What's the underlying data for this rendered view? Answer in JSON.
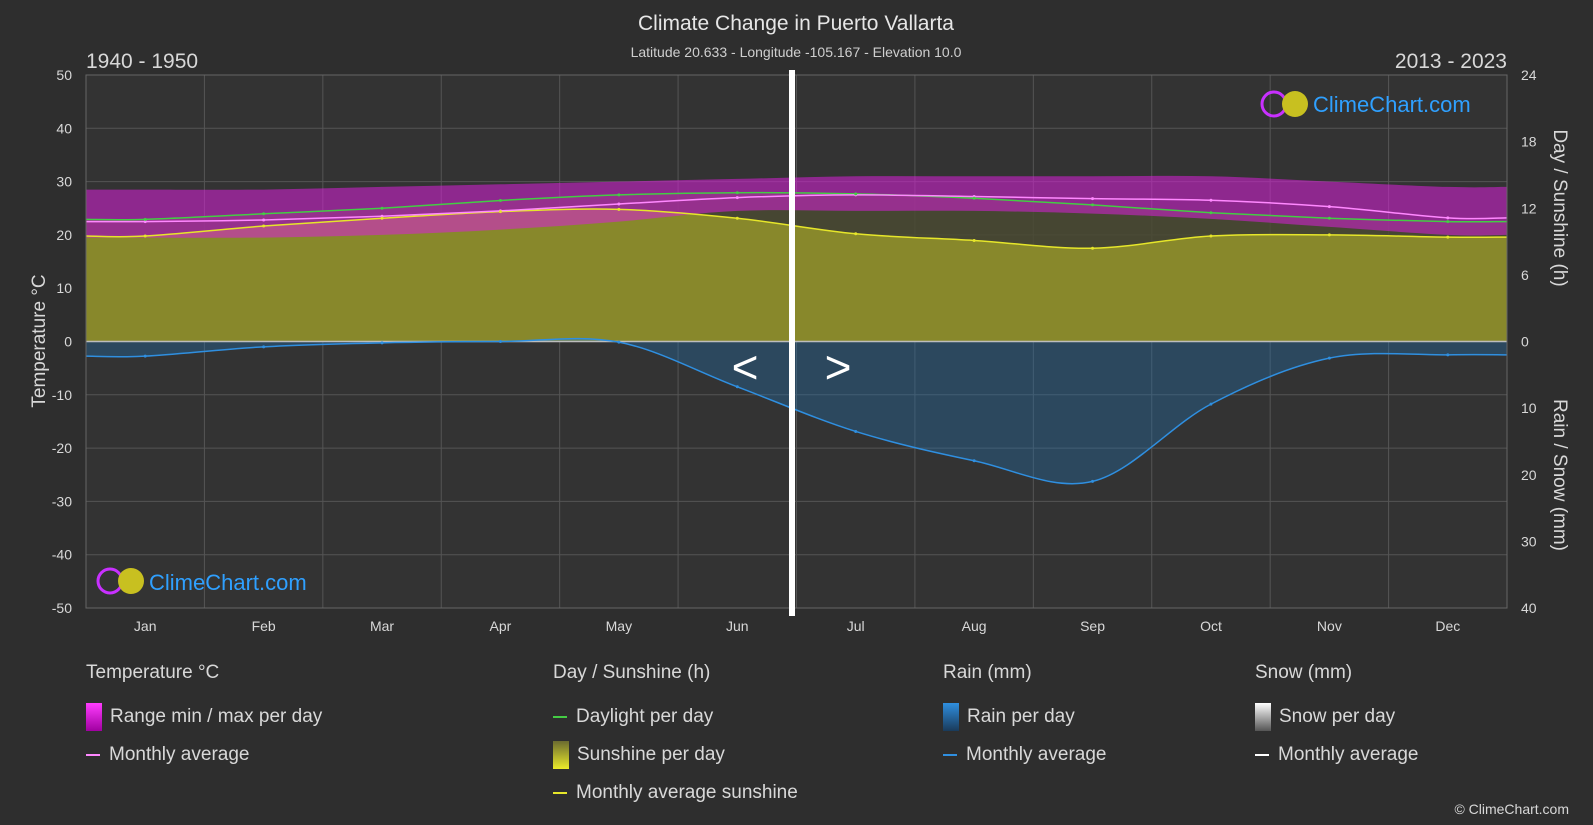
{
  "header": {
    "title": "Climate Change in Puerto Vallarta",
    "subtitle": "Latitude 20.633 - Longitude -105.167 - Elevation 10.0",
    "period_left": "1940 - 1950",
    "period_right": "2013 - 2023",
    "nav_prev": "<",
    "nav_next": ">"
  },
  "watermark": {
    "text": "ClimeChart.com"
  },
  "copyright": "© ClimeChart.com",
  "legend": {
    "temperature": {
      "title": "Temperature °C",
      "range_label": "Range min / max per day",
      "avg_label": "Monthly average"
    },
    "sunshine": {
      "title": "Day / Sunshine (h)",
      "daylight_label": "Daylight per day",
      "sunshine_label": "Sunshine per day",
      "avg_label": "Monthly average sunshine"
    },
    "rain": {
      "title": "Rain (mm)",
      "per_day_label": "Rain per day",
      "avg_label": "Monthly average"
    },
    "snow": {
      "title": "Snow (mm)",
      "per_day_label": "Snow per day",
      "avg_label": "Monthly average"
    }
  },
  "colors": {
    "background": "#2e2e2e",
    "grid": "#555555",
    "temp_range": "#d81fd8",
    "temp_avg": "#ff88ff",
    "daylight": "#44cc44",
    "sunshine_fill": "#8f8f2a",
    "sunshine_avg": "#e6e62a",
    "rain_fill": "#1f6fb0",
    "rain_avg": "#2f8fe0",
    "snow": "#ffffff",
    "watermark": "#2fa0ff"
  },
  "chart_data": {
    "type": "area",
    "x_categories": [
      "Jan",
      "Feb",
      "Mar",
      "Apr",
      "May",
      "Jun",
      "Jul",
      "Aug",
      "Sep",
      "Oct",
      "Nov",
      "Dec"
    ],
    "left_axis": {
      "label": "Temperature °C",
      "range": [
        -50,
        50
      ],
      "ticks": [
        50,
        40,
        30,
        20,
        10,
        0,
        -10,
        -20,
        -30,
        -40,
        -50
      ]
    },
    "right_axis_top": {
      "label": "Day / Sunshine (h)",
      "range": [
        0,
        24
      ],
      "ticks": [
        24,
        18,
        12,
        6,
        0
      ]
    },
    "right_axis_bottom": {
      "label": "Rain / Snow (mm)",
      "range": [
        0,
        40
      ],
      "ticks": [
        0,
        10,
        20,
        30,
        40
      ]
    },
    "grid": true,
    "divider_month_position": 6.0,
    "series": [
      {
        "name": "Daylight per day",
        "unit": "h",
        "values": [
          11.0,
          11.5,
          12.0,
          12.7,
          13.2,
          13.4,
          13.3,
          12.9,
          12.3,
          11.6,
          11.1,
          10.8
        ]
      },
      {
        "name": "Monthly average sunshine",
        "unit": "h",
        "values": [
          9.5,
          10.4,
          11.1,
          11.7,
          11.9,
          11.1,
          9.7,
          9.1,
          8.4,
          9.5,
          9.6,
          9.4
        ]
      },
      {
        "name": "Temperature monthly average",
        "unit": "°C",
        "values": [
          22.5,
          22.8,
          23.5,
          24.5,
          25.8,
          27.0,
          27.5,
          27.2,
          26.8,
          26.5,
          25.3,
          23.2
        ]
      },
      {
        "name": "Temperature daily max (approx)",
        "unit": "°C",
        "values": [
          28.5,
          28.5,
          29.0,
          29.5,
          30.0,
          30.5,
          31.0,
          31.0,
          31.0,
          31.0,
          30.0,
          29.0
        ]
      },
      {
        "name": "Temperature daily min (approx)",
        "unit": "°C",
        "values": [
          19.5,
          19.5,
          20.0,
          21.0,
          22.5,
          24.5,
          24.5,
          24.5,
          24.0,
          23.0,
          21.5,
          20.0
        ]
      },
      {
        "name": "Rain monthly average",
        "unit": "mm",
        "values": [
          2.2,
          0.8,
          0.2,
          0.0,
          0.1,
          6.8,
          13.5,
          17.9,
          21.0,
          9.4,
          2.5,
          2.0
        ]
      },
      {
        "name": "Snow monthly average",
        "unit": "mm",
        "values": [
          0,
          0,
          0,
          0,
          0,
          0,
          0,
          0,
          0,
          0,
          0,
          0
        ]
      }
    ]
  }
}
